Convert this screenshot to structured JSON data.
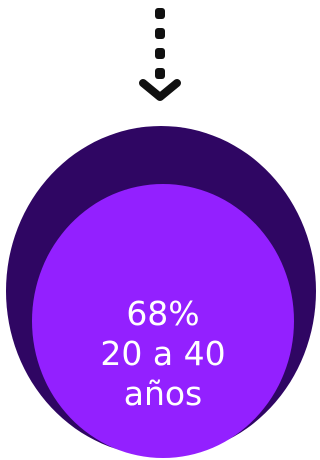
{
  "colors": {
    "arrow": "#111111",
    "outer": "#2f0663",
    "inner": "#9320ff",
    "text": "#ffffff"
  },
  "icon": {
    "arrow": "dashed-down-arrow-icon"
  },
  "content": {
    "percent": "68%",
    "range": "20 a 40",
    "unit": "años"
  }
}
